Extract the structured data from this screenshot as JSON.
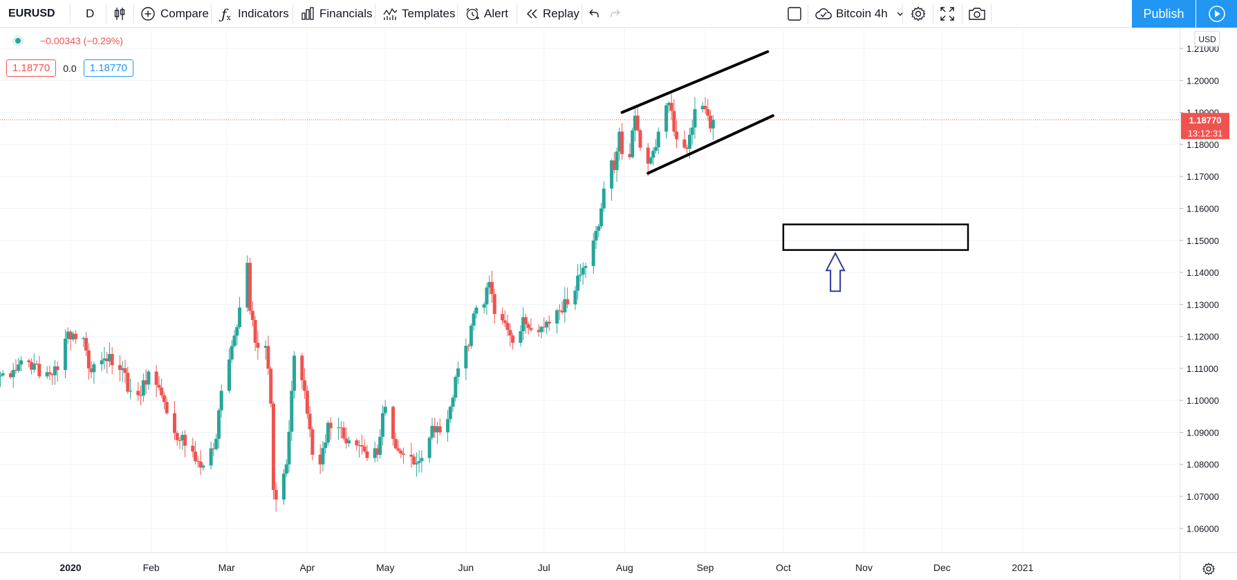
{
  "toolbar": {
    "symbol": "EURUSD",
    "interval": "D",
    "compare": "Compare",
    "indicators": "Indicators",
    "financials": "Financials",
    "templates": "Templates",
    "alert": "Alert",
    "replay": "Replay",
    "layout_name": "Bitcoin 4h",
    "publish": "Publish"
  },
  "legend": {
    "change": "−0.00343 (−0.29%)",
    "bid": "1.18770",
    "spread": "0.0",
    "ask": "1.18770"
  },
  "price_axis": {
    "currency": "USD",
    "last_price": "1.18770",
    "countdown": "13:12:31"
  },
  "chart_data": {
    "type": "candlestick",
    "symbol": "EURUSD",
    "interval": "D",
    "ylim": [
      1.0525,
      1.2165
    ],
    "y_ticks": [
      "1.21000",
      "1.20000",
      "1.19000",
      "1.18000",
      "1.17000",
      "1.16000",
      "1.15000",
      "1.14000",
      "1.13000",
      "1.12000",
      "1.11000",
      "1.10000",
      "1.09000",
      "1.08000",
      "1.07000",
      "1.06000"
    ],
    "x_ticks": [
      {
        "label": "2020",
        "date": "2020-01-01"
      },
      {
        "label": "Feb",
        "date": "2020-02-01"
      },
      {
        "label": "Mar",
        "date": "2020-03-01"
      },
      {
        "label": "Apr",
        "date": "2020-04-01"
      },
      {
        "label": "May",
        "date": "2020-05-01"
      },
      {
        "label": "Jun",
        "date": "2020-06-01"
      },
      {
        "label": "Jul",
        "date": "2020-07-01"
      },
      {
        "label": "Aug",
        "date": "2020-08-01"
      },
      {
        "label": "Sep",
        "date": "2020-09-01"
      },
      {
        "label": "Oct",
        "date": "2020-10-01"
      },
      {
        "label": "Nov",
        "date": "2020-11-01"
      },
      {
        "label": "Dec",
        "date": "2020-12-01"
      },
      {
        "label": "2021",
        "date": "2021-01-01"
      }
    ],
    "close_path": [
      [
        "2019-12-04",
        1.1075
      ],
      [
        "2019-12-10",
        1.1095
      ],
      [
        "2019-12-13",
        1.1125
      ],
      [
        "2019-12-18",
        1.1115
      ],
      [
        "2019-12-20",
        1.1075
      ],
      [
        "2019-12-27",
        1.1095
      ],
      [
        "2019-12-31",
        1.1215
      ],
      [
        "2020-01-06",
        1.1195
      ],
      [
        "2020-01-08",
        1.11
      ],
      [
        "2020-01-13",
        1.1125
      ],
      [
        "2020-01-16",
        1.1145
      ],
      [
        "2020-01-20",
        1.1095
      ],
      [
        "2020-01-24",
        1.103
      ],
      [
        "2020-01-28",
        1.1015
      ],
      [
        "2020-01-31",
        1.109
      ],
      [
        "2020-02-04",
        1.104
      ],
      [
        "2020-02-07",
        1.096
      ],
      [
        "2020-02-12",
        1.0875
      ],
      [
        "2020-02-17",
        1.084
      ],
      [
        "2020-02-20",
        1.079
      ],
      [
        "2020-02-24",
        1.085
      ],
      [
        "2020-02-26",
        1.088
      ],
      [
        "2020-02-28",
        1.103
      ],
      [
        "2020-03-03",
        1.117
      ],
      [
        "2020-03-06",
        1.129
      ],
      [
        "2020-03-09",
        1.143
      ],
      [
        "2020-03-10",
        1.128
      ],
      [
        "2020-03-12",
        1.118
      ],
      [
        "2020-03-16",
        1.117
      ],
      [
        "2020-03-18",
        1.099
      ],
      [
        "2020-03-19",
        1.072
      ],
      [
        "2020-03-20",
        1.069
      ],
      [
        "2020-03-24",
        1.08
      ],
      [
        "2020-03-26",
        1.103
      ],
      [
        "2020-03-27",
        1.114
      ],
      [
        "2020-03-31",
        1.103
      ],
      [
        "2020-04-03",
        1.083
      ],
      [
        "2020-04-06",
        1.08
      ],
      [
        "2020-04-09",
        1.093
      ],
      [
        "2020-04-14",
        1.0915
      ],
      [
        "2020-04-17",
        1.0875
      ],
      [
        "2020-04-21",
        1.086
      ],
      [
        "2020-04-24",
        1.082
      ],
      [
        "2020-04-28",
        1.083
      ],
      [
        "2020-04-30",
        1.096
      ],
      [
        "2020-05-01",
        1.098
      ],
      [
        "2020-05-05",
        1.085
      ],
      [
        "2020-05-08",
        1.083
      ],
      [
        "2020-05-12",
        1.08
      ],
      [
        "2020-05-15",
        1.082
      ],
      [
        "2020-05-19",
        1.092
      ],
      [
        "2020-05-22",
        1.09
      ],
      [
        "2020-05-26",
        1.098
      ],
      [
        "2020-05-29",
        1.11
      ],
      [
        "2020-06-02",
        1.117
      ],
      [
        "2020-06-05",
        1.129
      ],
      [
        "2020-06-08",
        1.13
      ],
      [
        "2020-06-10",
        1.137
      ],
      [
        "2020-06-12",
        1.127
      ],
      [
        "2020-06-15",
        1.125
      ],
      [
        "2020-06-17",
        1.122
      ],
      [
        "2020-06-19",
        1.118
      ],
      [
        "2020-06-23",
        1.126
      ],
      [
        "2020-06-26",
        1.122
      ],
      [
        "2020-06-30",
        1.123
      ],
      [
        "2020-07-03",
        1.124
      ],
      [
        "2020-07-07",
        1.128
      ],
      [
        "2020-07-10",
        1.13
      ],
      [
        "2020-07-14",
        1.139
      ],
      [
        "2020-07-17",
        1.142
      ],
      [
        "2020-07-21",
        1.153
      ],
      [
        "2020-07-23",
        1.16
      ],
      [
        "2020-07-27",
        1.175
      ],
      [
        "2020-07-28",
        1.172
      ],
      [
        "2020-07-30",
        1.184
      ],
      [
        "2020-07-31",
        1.177
      ],
      [
        "2020-08-03",
        1.176
      ],
      [
        "2020-08-05",
        1.189
      ],
      [
        "2020-08-07",
        1.179
      ],
      [
        "2020-08-10",
        1.174
      ],
      [
        "2020-08-12",
        1.178
      ],
      [
        "2020-08-14",
        1.184
      ],
      [
        "2020-08-18",
        1.193
      ],
      [
        "2020-08-20",
        1.184
      ],
      [
        "2020-08-24",
        1.179
      ],
      [
        "2020-08-26",
        1.183
      ],
      [
        "2020-08-28",
        1.191
      ],
      [
        "2020-09-01",
        1.191
      ],
      [
        "2020-09-03",
        1.185
      ],
      [
        "2020-09-04",
        1.1877
      ]
    ],
    "drawings": [
      {
        "kind": "trendline",
        "from": [
          "2020-07-31",
          1.19
        ],
        "to": [
          "2020-09-25",
          1.209
        ]
      },
      {
        "kind": "trendline",
        "from": [
          "2020-08-10",
          1.171
        ],
        "to": [
          "2020-09-27",
          1.189
        ]
      },
      {
        "kind": "rectangle",
        "from": [
          "2020-10-01",
          1.155
        ],
        "to": [
          "2020-12-11",
          1.147
        ]
      },
      {
        "kind": "arrow-up",
        "at": [
          "2020-10-21",
          1.146
        ]
      }
    ]
  }
}
